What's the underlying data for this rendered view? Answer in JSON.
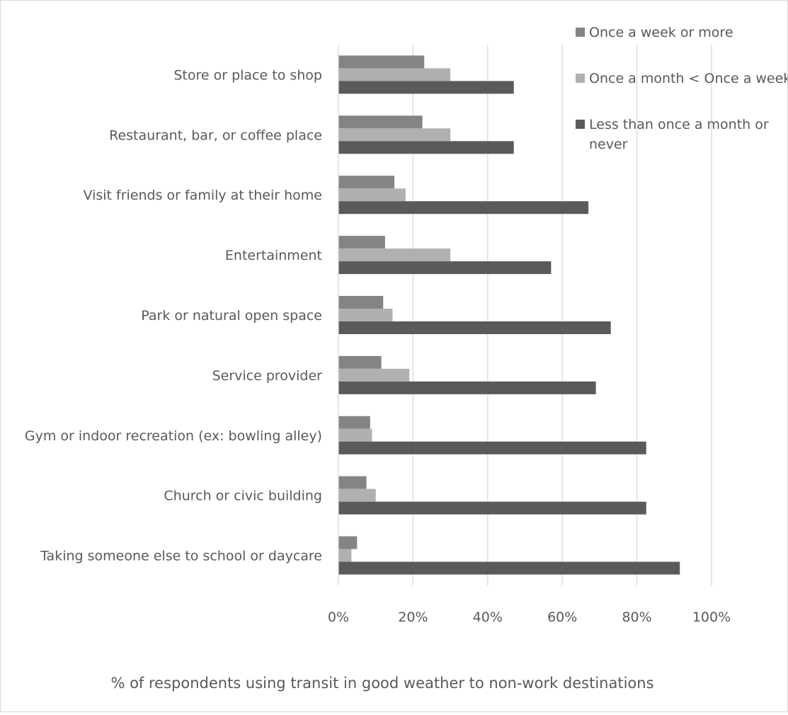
{
  "chart_data": {
    "type": "bar",
    "orientation": "horizontal",
    "title": "",
    "xlabel": "% of respondents using transit in good weather to non-work destinations",
    "ylabel": "",
    "xlim": [
      0,
      100
    ],
    "x_tick_labels": [
      "0%",
      "20%",
      "40%",
      "60%",
      "80%",
      "100%"
    ],
    "grid": "vertical",
    "legend_position": "top-right",
    "categories": [
      "Store or place to shop",
      "Restaurant, bar, or coffee place",
      "Visit friends or family at their home",
      "Entertainment",
      "Park or natural open space",
      "Service provider",
      "Gym or indoor recreation (ex: bowling alley)",
      "Church or civic building",
      "Taking someone else to school or daycare"
    ],
    "series": [
      {
        "name": "Once a week or more",
        "color": "#848484",
        "values": [
          23,
          22.5,
          15,
          12.5,
          12,
          11.5,
          8.5,
          7.5,
          5
        ]
      },
      {
        "name": "Once a month < Once a week",
        "color": "#b0b0b0",
        "values": [
          30,
          30,
          18,
          30,
          14.5,
          19,
          9,
          10,
          3.5
        ]
      },
      {
        "name": "Less than once a month or never",
        "color": "#5a5a5a",
        "legend_lines": [
          "Less than once a month or",
          "never"
        ],
        "values": [
          47,
          47,
          67,
          57,
          73,
          69,
          82.5,
          82.5,
          91.5
        ]
      }
    ]
  }
}
